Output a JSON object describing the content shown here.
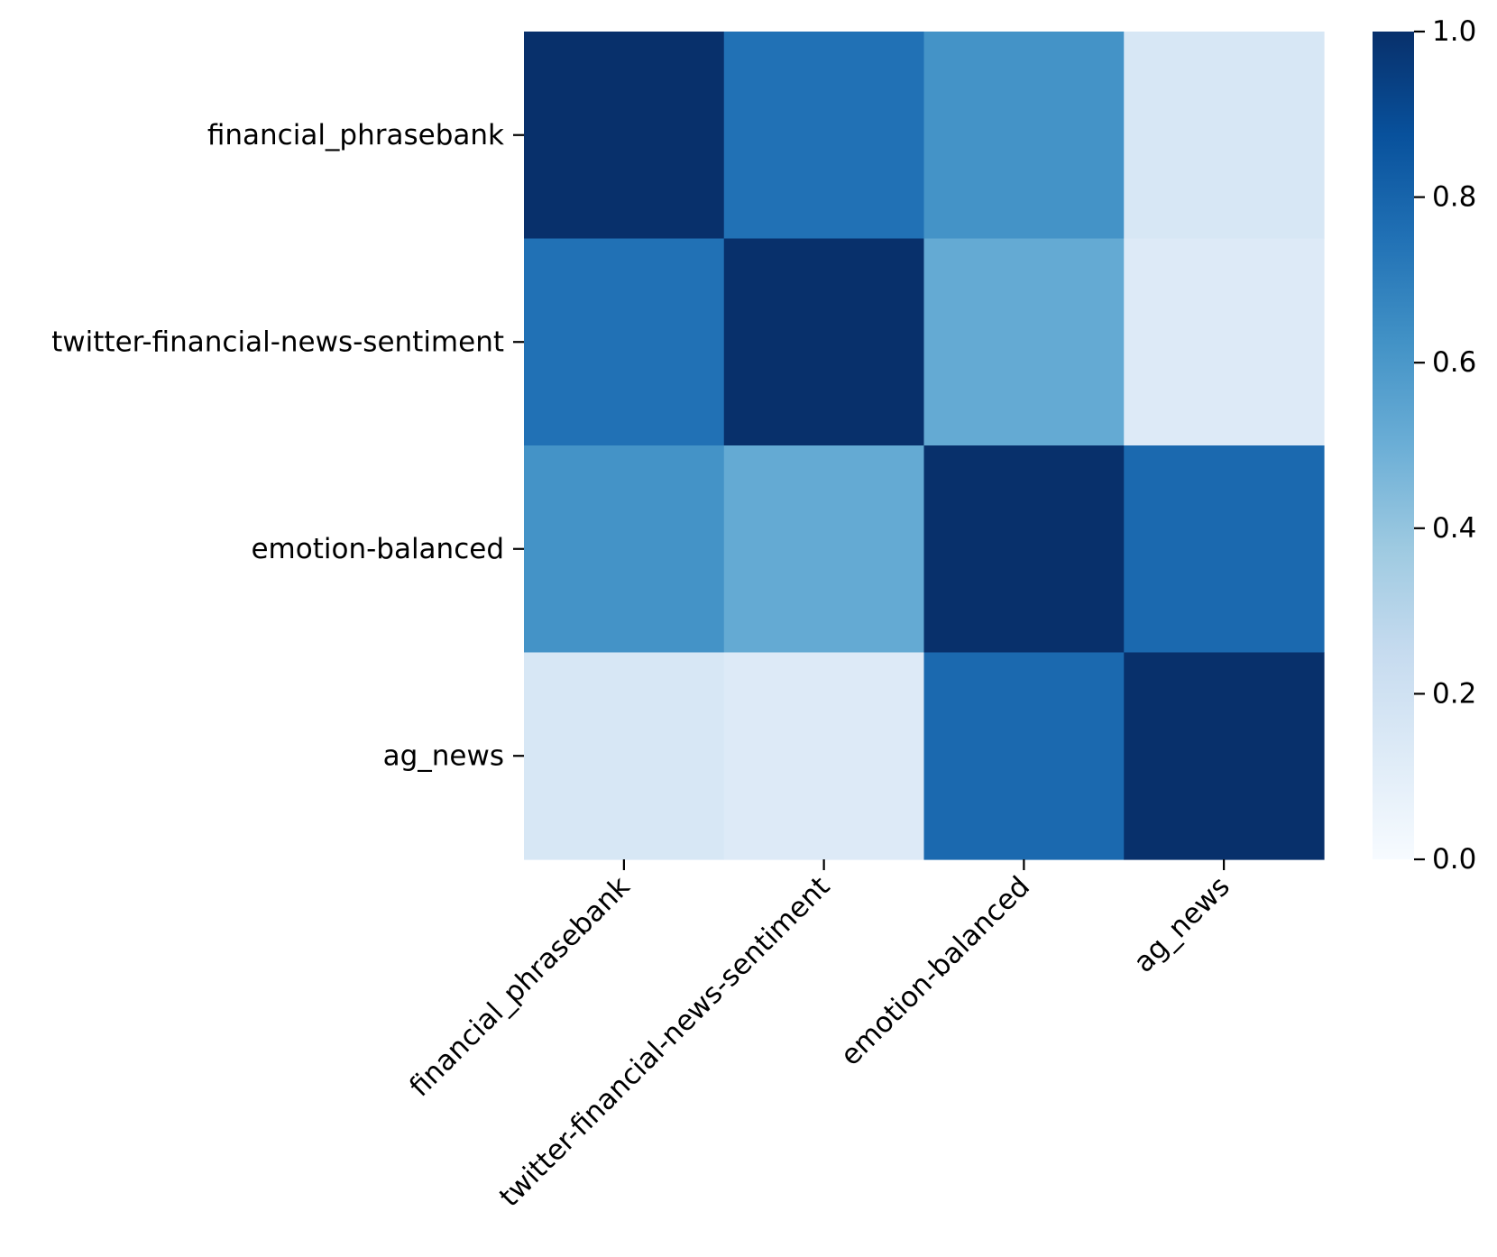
{
  "chart_data": {
    "type": "heatmap",
    "title": "",
    "xlabel": "",
    "ylabel": "",
    "row_labels": [
      "financial_phrasebank",
      "twitter-financial-news-sentiment",
      "emotion-balanced",
      "ag_news"
    ],
    "col_labels": [
      "financial_phrasebank",
      "twitter-financial-news-sentiment",
      "emotion-balanced",
      "ag_news"
    ],
    "values": [
      [
        1.0,
        0.75,
        0.62,
        0.16
      ],
      [
        0.75,
        1.0,
        0.52,
        0.13
      ],
      [
        0.62,
        0.52,
        1.0,
        0.78
      ],
      [
        0.16,
        0.13,
        0.78,
        1.0
      ]
    ],
    "colormap": "Blues",
    "colorbar": {
      "min": 0.0,
      "max": 1.0,
      "ticks": [
        "0.0",
        "0.2",
        "0.4",
        "0.6",
        "0.8",
        "1.0"
      ]
    }
  }
}
